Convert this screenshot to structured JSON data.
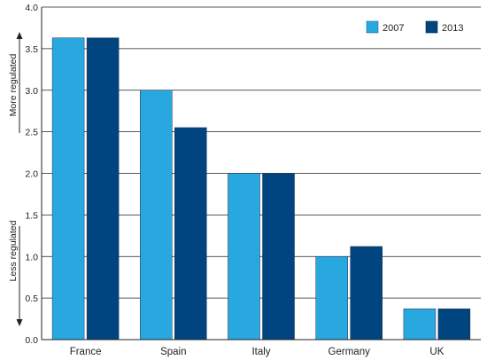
{
  "chart_data": {
    "type": "bar",
    "categories": [
      "France",
      "Spain",
      "Italy",
      "Germany",
      "UK"
    ],
    "series": [
      {
        "name": "2007",
        "values": [
          3.63,
          3.0,
          2.0,
          1.0,
          0.37
        ],
        "color": "#29a8e0"
      },
      {
        "name": "2013",
        "values": [
          3.63,
          2.55,
          2.0,
          1.12,
          0.37
        ],
        "color": "#004480"
      }
    ],
    "yticks": [
      "0.0",
      "0.5",
      "1.0",
      "1.5",
      "2.0",
      "2.5",
      "3.0",
      "3.5",
      "4.0"
    ],
    "ylim": [
      0,
      4
    ],
    "legend_position": "top-right",
    "grid": "horizontal",
    "annotations": {
      "upper": "More regulated",
      "lower": "Less regulated"
    }
  }
}
